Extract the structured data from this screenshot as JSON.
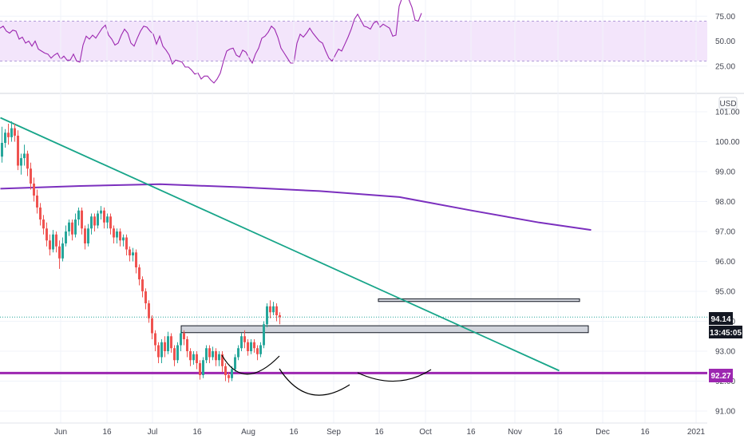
{
  "chart_data": [
    {
      "type": "line",
      "panel": "oscillator",
      "y_ticks": [
        "75.00",
        "50.00",
        "25.00"
      ],
      "ylim": [
        0,
        100
      ],
      "band": [
        30,
        70
      ],
      "colors": {
        "line": "#9c27b0",
        "band_fill": "#f3e5fb",
        "band_border": "#b19cd9"
      },
      "series": [
        {
          "values": [
            63,
            65,
            60,
            58,
            61,
            60,
            52,
            54,
            48,
            50,
            45,
            50,
            42,
            40,
            38,
            37,
            33,
            36,
            38,
            32,
            35,
            31,
            31,
            37,
            30,
            29,
            46,
            55,
            52,
            56,
            53,
            58,
            63,
            66,
            56,
            52,
            46,
            48,
            56,
            62,
            58,
            48,
            45,
            53,
            60,
            65,
            64,
            60,
            57,
            47,
            55,
            45,
            41,
            36,
            27,
            31,
            30,
            29,
            24,
            24,
            21,
            17,
            18,
            12,
            15,
            15,
            11,
            8,
            12,
            18,
            30,
            40,
            42,
            43,
            36,
            34,
            41,
            39,
            33,
            28,
            37,
            43,
            53,
            55,
            59,
            65,
            62,
            54,
            43,
            38,
            33,
            28,
            28,
            48,
            57,
            54,
            58,
            63,
            58,
            54,
            50,
            48,
            40,
            33,
            30,
            36,
            42,
            40,
            47,
            54,
            62,
            72,
            77,
            71,
            65,
            64,
            62,
            68,
            70,
            64,
            67,
            65,
            63,
            55,
            56,
            85,
            94,
            96,
            92,
            84,
            71,
            70,
            78
          ]
        }
      ]
    },
    {
      "type": "candlestick",
      "panel": "price",
      "currency": "USD",
      "ylim": [
        90.8,
        101.35
      ],
      "y_ticks": [
        "101.00",
        "100.00",
        "99.00",
        "98.00",
        "97.00",
        "96.00",
        "95.00",
        "94.00",
        "93.00",
        "92.00",
        "91.00"
      ],
      "x_ticks": [
        "Jun",
        "16",
        "Jul",
        "16",
        "Aug",
        "16",
        "Sep",
        "16",
        "Oct",
        "16",
        "Nov",
        "16",
        "Dec",
        "16",
        "2021"
      ],
      "price_labels": {
        "last_price": "94.14",
        "countdown": "13:45:05",
        "support": "92.27"
      },
      "support_level": 92.27,
      "resistance_zones": [
        [
          93.62,
          93.85
        ],
        [
          94.66,
          94.75
        ]
      ],
      "moving_average": [
        [
          0,
          98.43
        ],
        [
          20,
          98.52
        ],
        [
          40,
          98.58
        ],
        [
          60,
          98.48
        ],
        [
          80,
          98.35
        ],
        [
          100,
          98.15
        ],
        [
          118,
          97.7
        ],
        [
          135,
          97.3
        ],
        [
          148,
          97.05
        ]
      ],
      "trendline": [
        [
          0,
          100.8
        ],
        [
          140,
          92.35
        ]
      ],
      "colors": {
        "up": "#26a69a",
        "down": "#ef5350",
        "ma": "#7b2fbe",
        "trendline": "#17a589",
        "support": "#9c27b0",
        "zone_fill": "#d1d4dc",
        "zone_border": "#131722",
        "last_price_line": "#26a69a",
        "badge_price": "#131722",
        "badge_support": "#9c27b0"
      },
      "candles": [
        [
          99.5,
          99.96,
          100.5,
          99.3
        ],
        [
          99.96,
          100.3,
          100.42,
          99.8
        ],
        [
          100.3,
          100.15,
          100.6,
          99.9
        ],
        [
          100.15,
          100.45,
          100.68,
          100.0
        ],
        [
          100.45,
          100.2,
          100.6,
          100.0
        ],
        [
          100.2,
          99.2,
          100.38,
          99.05
        ],
        [
          99.2,
          99.45,
          99.6,
          98.9
        ],
        [
          99.45,
          99.6,
          99.9,
          99.2
        ],
        [
          99.6,
          99.1,
          99.7,
          98.85
        ],
        [
          99.1,
          98.6,
          99.3,
          98.4
        ],
        [
          98.6,
          98.2,
          98.8,
          98.0
        ],
        [
          98.2,
          97.8,
          98.4,
          97.6
        ],
        [
          97.8,
          97.4,
          97.95,
          97.2
        ],
        [
          97.4,
          97.1,
          97.55,
          96.9
        ],
        [
          97.1,
          96.7,
          97.3,
          96.5
        ],
        [
          96.7,
          96.4,
          96.9,
          96.2
        ],
        [
          96.4,
          96.9,
          97.05,
          96.3
        ],
        [
          96.9,
          96.5,
          97.0,
          96.3
        ],
        [
          96.5,
          96.1,
          96.7,
          95.75
        ],
        [
          96.1,
          96.6,
          96.8,
          96.0
        ],
        [
          96.6,
          97.0,
          97.2,
          96.5
        ],
        [
          97.0,
          97.3,
          97.4,
          96.85
        ],
        [
          97.3,
          96.9,
          97.4,
          96.7
        ],
        [
          96.9,
          97.4,
          97.6,
          96.8
        ],
        [
          97.4,
          97.7,
          97.8,
          97.2
        ],
        [
          97.7,
          97.1,
          97.8,
          96.9
        ],
        [
          97.1,
          96.6,
          97.2,
          96.4
        ],
        [
          96.6,
          97.1,
          97.25,
          96.5
        ],
        [
          97.1,
          97.5,
          97.6,
          96.9
        ],
        [
          97.5,
          97.2,
          97.6,
          97.0
        ],
        [
          97.2,
          97.6,
          97.7,
          97.1
        ],
        [
          97.6,
          97.7,
          97.85,
          97.4
        ],
        [
          97.7,
          97.3,
          97.8,
          97.1
        ],
        [
          97.3,
          97.5,
          97.6,
          97.1
        ],
        [
          97.5,
          97.1,
          97.6,
          96.9
        ],
        [
          97.1,
          96.8,
          97.2,
          96.6
        ],
        [
          96.8,
          97.0,
          97.1,
          96.6
        ],
        [
          97.0,
          96.7,
          97.1,
          96.5
        ],
        [
          96.7,
          96.8,
          96.9,
          96.5
        ],
        [
          96.8,
          96.4,
          96.9,
          96.2
        ],
        [
          96.4,
          96.2,
          96.5,
          96.0
        ],
        [
          96.2,
          96.3,
          96.45,
          96.0
        ],
        [
          96.3,
          95.8,
          96.4,
          95.6
        ],
        [
          95.8,
          95.4,
          95.9,
          95.2
        ],
        [
          95.4,
          95.0,
          95.5,
          94.8
        ],
        [
          95.0,
          94.6,
          95.1,
          94.4
        ],
        [
          94.6,
          94.1,
          94.7,
          93.95
        ],
        [
          94.1,
          93.6,
          94.2,
          93.4
        ],
        [
          93.6,
          93.2,
          93.7,
          93.0
        ],
        [
          93.2,
          92.8,
          93.3,
          92.6
        ],
        [
          92.8,
          93.3,
          93.4,
          92.6
        ],
        [
          93.3,
          93.0,
          93.5,
          92.8
        ],
        [
          93.0,
          93.5,
          93.65,
          92.9
        ],
        [
          93.5,
          93.1,
          93.6,
          92.95
        ],
        [
          93.1,
          92.7,
          93.2,
          92.5
        ],
        [
          92.7,
          93.2,
          93.3,
          92.6
        ],
        [
          93.2,
          93.6,
          93.7,
          93.0
        ],
        [
          93.6,
          93.4,
          93.7,
          93.2
        ],
        [
          93.4,
          93.0,
          93.5,
          92.8
        ],
        [
          93.0,
          92.7,
          93.1,
          92.5
        ],
        [
          92.7,
          92.9,
          93.0,
          92.55
        ],
        [
          92.9,
          92.6,
          93.0,
          92.4
        ],
        [
          92.6,
          92.2,
          92.7,
          92.05
        ],
        [
          92.2,
          92.7,
          92.8,
          92.1
        ],
        [
          92.7,
          93.1,
          93.2,
          92.6
        ],
        [
          93.1,
          92.8,
          93.2,
          92.6
        ],
        [
          92.8,
          93.0,
          93.15,
          92.7
        ],
        [
          93.0,
          92.7,
          93.1,
          92.5
        ],
        [
          92.7,
          92.9,
          93.0,
          92.5
        ],
        [
          92.9,
          92.5,
          93.0,
          92.3
        ],
        [
          92.5,
          92.2,
          92.6,
          92.0
        ],
        [
          92.2,
          92.1,
          92.3,
          91.95
        ],
        [
          92.1,
          92.4,
          92.5,
          92.0
        ],
        [
          92.4,
          92.8,
          92.9,
          92.3
        ],
        [
          92.8,
          93.1,
          93.2,
          92.7
        ],
        [
          93.1,
          93.5,
          93.6,
          93.0
        ],
        [
          93.5,
          93.3,
          93.7,
          93.1
        ],
        [
          93.3,
          93.0,
          93.4,
          92.85
        ],
        [
          93.0,
          93.3,
          93.4,
          92.9
        ],
        [
          93.3,
          93.1,
          93.4,
          92.95
        ],
        [
          93.1,
          92.9,
          93.2,
          92.7
        ],
        [
          92.9,
          93.2,
          93.3,
          92.8
        ],
        [
          93.2,
          93.9,
          94.0,
          93.1
        ],
        [
          93.9,
          94.5,
          94.6,
          93.8
        ],
        [
          94.5,
          94.3,
          94.7,
          94.1
        ],
        [
          94.3,
          94.5,
          94.65,
          94.2
        ],
        [
          94.5,
          94.2,
          94.6,
          94.0
        ],
        [
          94.2,
          94.14,
          94.3,
          93.9
        ]
      ]
    }
  ]
}
